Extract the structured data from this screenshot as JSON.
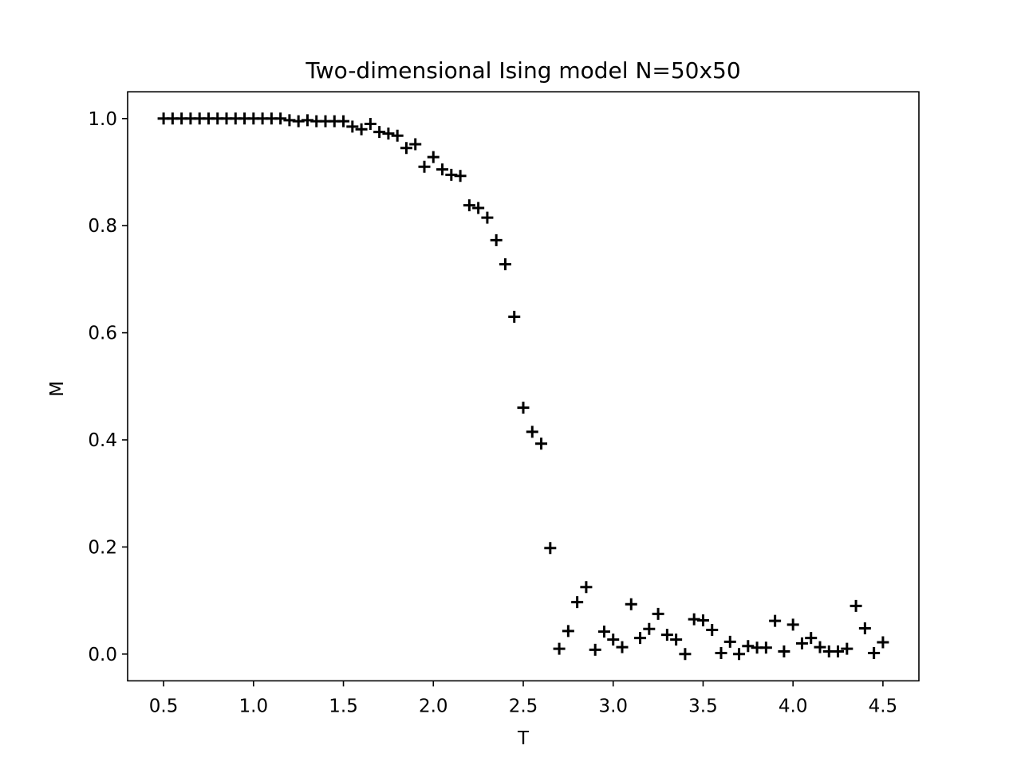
{
  "chart_data": {
    "type": "scatter",
    "title": "Two-dimensional Ising model N=50x50",
    "xlabel": "T",
    "ylabel": "M",
    "xlim": [
      0.3,
      4.7
    ],
    "ylim": [
      -0.05,
      1.05
    ],
    "xticks": [
      0.5,
      1.0,
      1.5,
      2.0,
      2.5,
      3.0,
      3.5,
      4.0,
      4.5
    ],
    "xtick_labels": [
      "0.5",
      "1.0",
      "1.5",
      "2.0",
      "2.5",
      "3.0",
      "3.5",
      "4.0",
      "4.5"
    ],
    "yticks": [
      0.0,
      0.2,
      0.4,
      0.6,
      0.8,
      1.0
    ],
    "ytick_labels": [
      "0.0",
      "0.2",
      "0.4",
      "0.6",
      "0.8",
      "1.0"
    ],
    "grid": false,
    "marker": "+",
    "marker_color": "#000000",
    "x": [
      0.5,
      0.55,
      0.6,
      0.65,
      0.7,
      0.75,
      0.8,
      0.85,
      0.9,
      0.95,
      1.0,
      1.05,
      1.1,
      1.15,
      1.2,
      1.25,
      1.3,
      1.35,
      1.4,
      1.45,
      1.5,
      1.55,
      1.6,
      1.65,
      1.7,
      1.75,
      1.8,
      1.85,
      1.9,
      1.95,
      2.0,
      2.05,
      2.1,
      2.15,
      2.2,
      2.25,
      2.3,
      2.35,
      2.4,
      2.45,
      2.5,
      2.55,
      2.6,
      2.65,
      2.7,
      2.75,
      2.8,
      2.85,
      2.9,
      2.95,
      3.0,
      3.05,
      3.1,
      3.15,
      3.2,
      3.25,
      3.3,
      3.35,
      3.4,
      3.45,
      3.5,
      3.55,
      3.6,
      3.65,
      3.7,
      3.75,
      3.8,
      3.85,
      3.9,
      3.95,
      4.0,
      4.05,
      4.1,
      4.15,
      4.2,
      4.25,
      4.3,
      4.35,
      4.4,
      4.45,
      4.5
    ],
    "y": [
      1.0,
      1.0,
      1.0,
      1.0,
      1.0,
      1.0,
      1.0,
      1.0,
      1.0,
      1.0,
      1.0,
      1.0,
      1.0,
      1.0,
      0.997,
      0.995,
      0.997,
      0.995,
      0.995,
      0.995,
      0.995,
      0.985,
      0.98,
      0.99,
      0.975,
      0.972,
      0.968,
      0.945,
      0.952,
      0.91,
      0.928,
      0.905,
      0.895,
      0.893,
      0.838,
      0.833,
      0.815,
      0.773,
      0.728,
      0.63,
      0.46,
      0.415,
      0.393,
      0.198,
      0.01,
      0.043,
      0.097,
      0.125,
      0.008,
      0.042,
      0.027,
      0.013,
      0.093,
      0.03,
      0.047,
      0.075,
      0.036,
      0.027,
      0.0,
      0.065,
      0.063,
      0.045,
      0.002,
      0.023,
      0.0,
      0.015,
      0.012,
      0.012,
      0.062,
      0.005,
      0.055,
      0.02,
      0.03,
      0.013,
      0.005,
      0.005,
      0.01,
      0.09,
      0.048,
      0.002,
      0.022
    ]
  }
}
